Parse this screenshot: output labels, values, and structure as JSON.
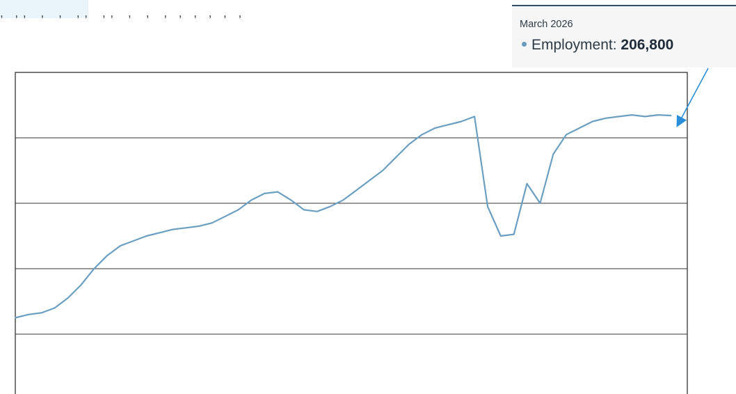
{
  "tooltip": {
    "date": "March 2026",
    "series_label": "Employment:",
    "value": "206,800"
  },
  "colors": {
    "line": "#6b9fc2",
    "annotation": "#2a8fd8",
    "grid": "#333333",
    "tooltip_bg": "#f6f6f6",
    "tooltip_border": "#2e4e6e"
  },
  "chart_data": {
    "type": "line",
    "title": "",
    "xlabel": "",
    "ylabel": "",
    "series": [
      {
        "values": [
          145,
          146,
          146.5,
          148,
          151,
          155,
          160,
          164,
          167,
          168.5,
          170,
          171,
          172,
          172.5,
          173,
          174,
          176,
          178,
          181,
          183,
          183.5,
          181,
          178,
          177.5,
          179,
          181,
          184,
          187,
          190,
          194,
          198,
          201,
          203,
          204,
          205,
          206.5,
          179,
          170,
          170.5,
          186,
          180,
          195,
          201,
          203,
          205,
          206,
          206.5,
          207,
          206.5,
          207,
          206.8
        ]
      }
    ],
    "grid": true,
    "ylim": [
      120,
      220
    ],
    "annotation": "March 2026"
  }
}
